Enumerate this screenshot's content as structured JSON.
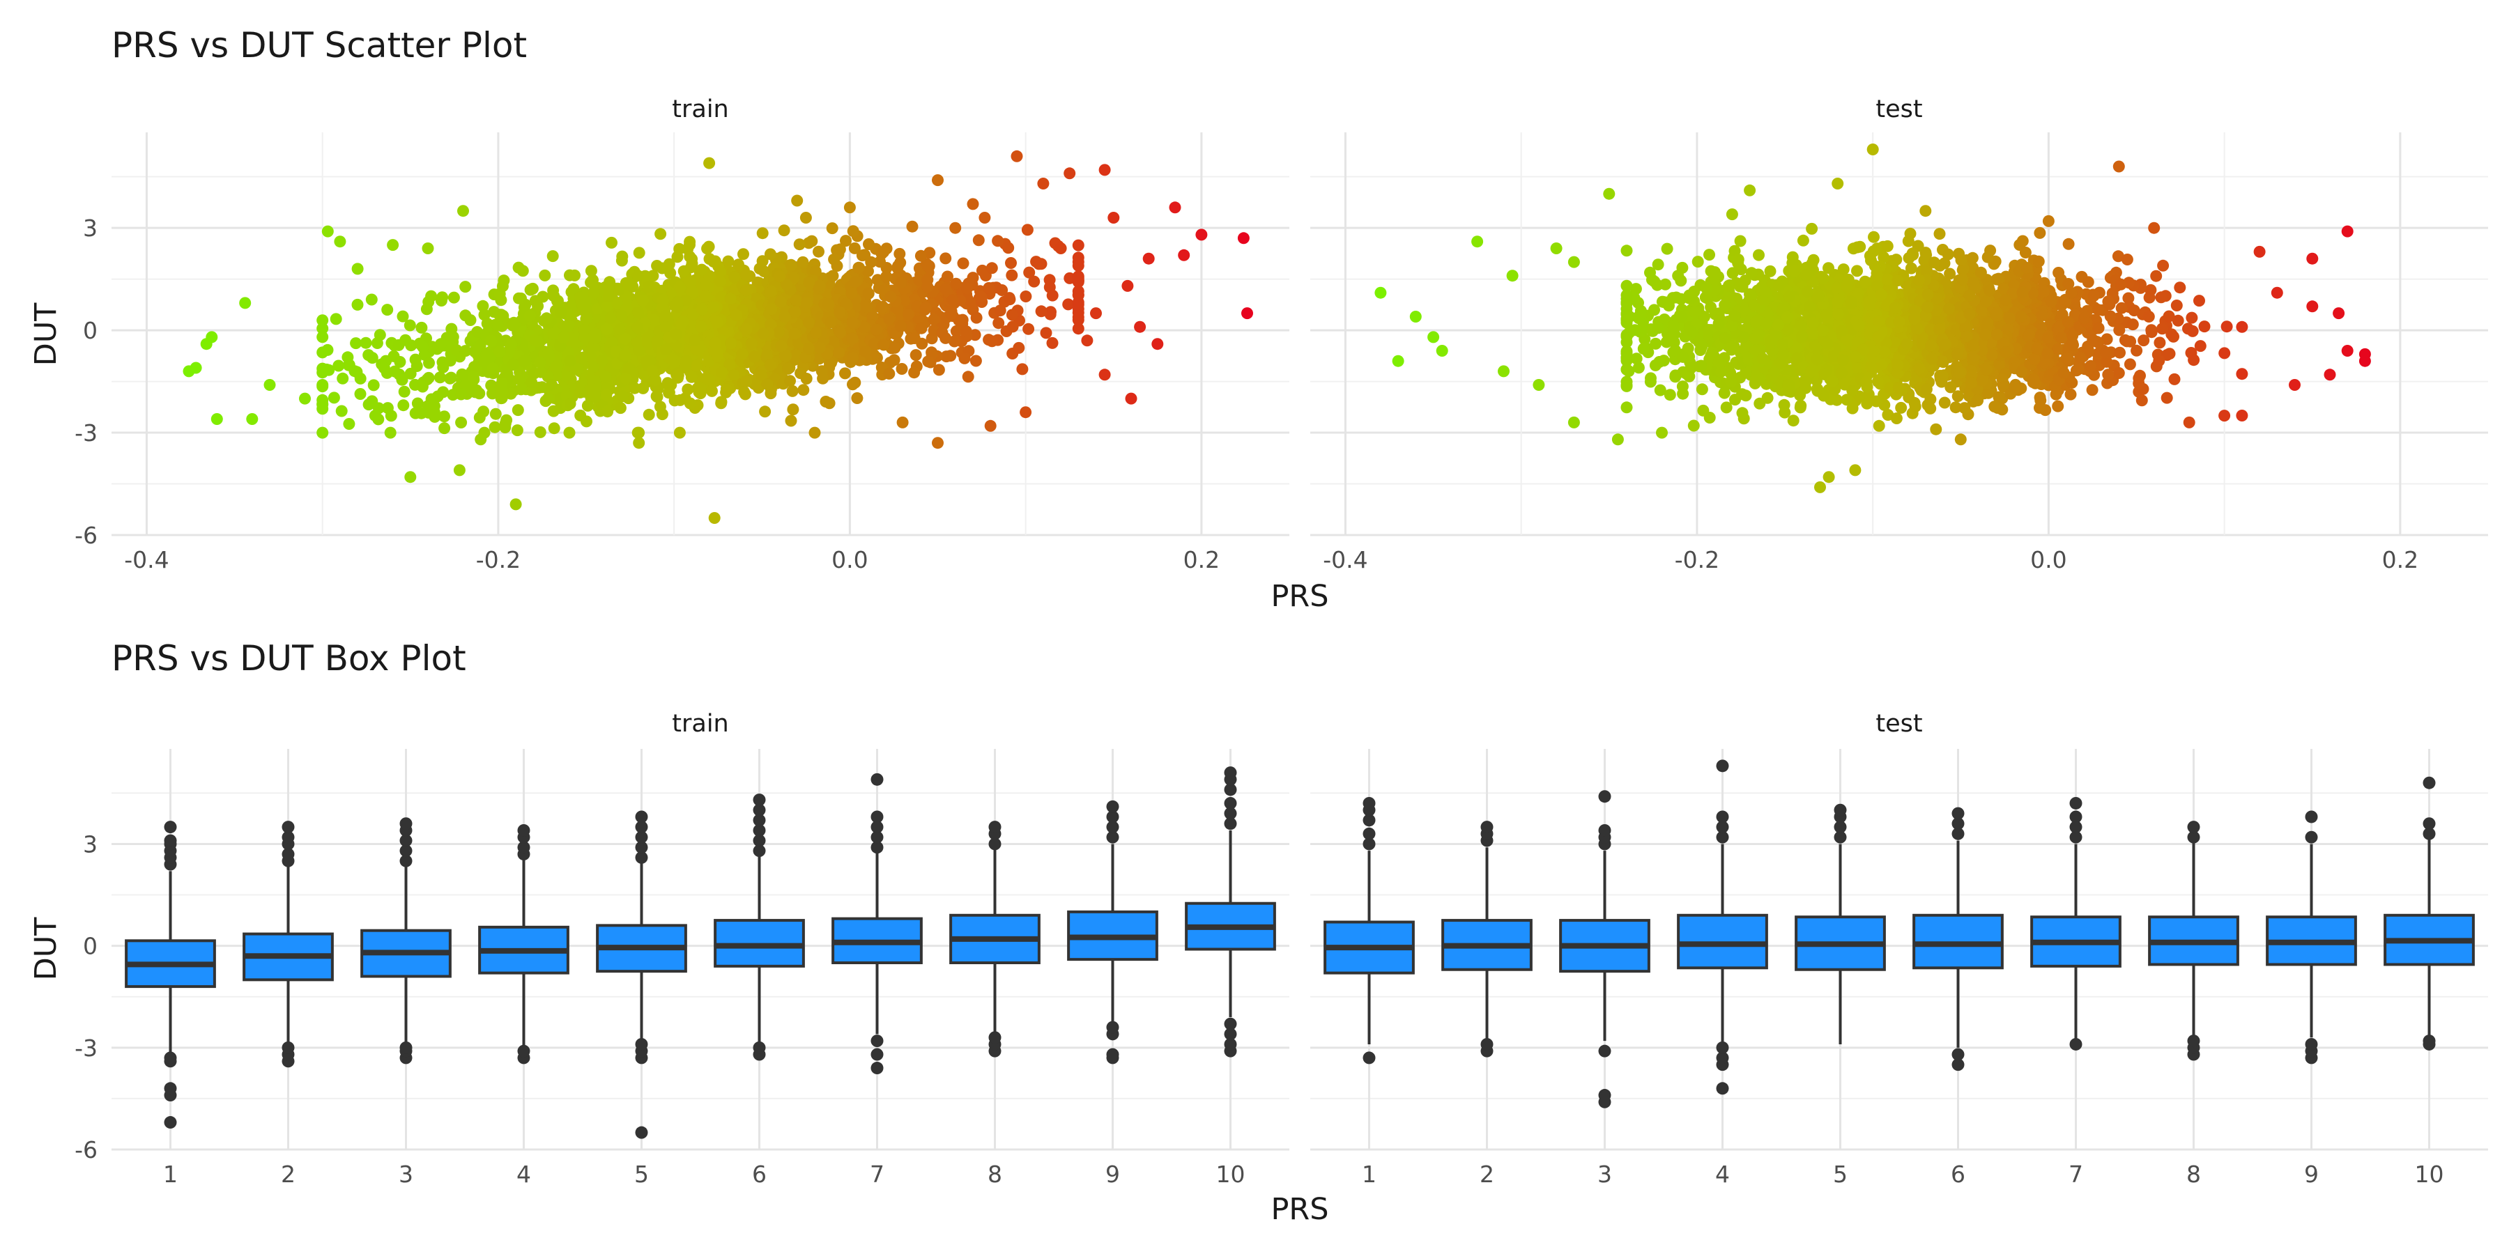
{
  "chart_data": [
    {
      "type": "scatter",
      "title": "PRS vs DUT Scatter Plot",
      "xlabel": "PRS",
      "ylabel": "DUT",
      "facets": [
        "train",
        "test"
      ],
      "xlim": [
        -0.42,
        0.25
      ],
      "ylim": [
        -6.0,
        5.8
      ],
      "x_ticks": [
        -0.4,
        -0.2,
        0.0,
        0.2
      ],
      "x_tick_labels": [
        "-0.4",
        "-0.2",
        "0.0",
        "0.2"
      ],
      "y_ticks": [
        -6,
        -3,
        0,
        3
      ],
      "y_tick_labels": [
        "-6",
        "-3",
        "0",
        "3"
      ],
      "grid": true,
      "color_scale": {
        "low": "#7cf000",
        "mid": "#b8b800",
        "high": "#e8001e",
        "mapped_to": "PRS"
      },
      "series": [
        {
          "facet": "train",
          "x_range": [
            -0.38,
            0.23
          ],
          "cloud_center": [
            -0.08,
            0.0
          ],
          "cloud_x_extent": [
            -0.3,
            0.13
          ],
          "cloud_y_extent": [
            -3.0,
            3.3
          ],
          "points": [
            [
              -0.376,
              -1.2
            ],
            [
              -0.372,
              -1.1
            ],
            [
              -0.366,
              -0.4
            ],
            [
              -0.363,
              -0.2
            ],
            [
              -0.36,
              -2.6
            ],
            [
              -0.344,
              0.8
            ],
            [
              -0.34,
              -2.6
            ],
            [
              -0.33,
              -1.6
            ],
            [
              -0.31,
              -2.0
            ],
            [
              -0.3,
              -2.3
            ],
            [
              -0.297,
              2.9
            ],
            [
              -0.29,
              2.6
            ],
            [
              -0.272,
              0.9
            ],
            [
              -0.26,
              2.5
            ],
            [
              -0.25,
              -4.3
            ],
            [
              -0.24,
              2.4
            ],
            [
              -0.22,
              3.5
            ],
            [
              -0.222,
              -4.1
            ],
            [
              -0.19,
              -5.1
            ],
            [
              -0.08,
              4.9
            ],
            [
              -0.077,
              -5.5
            ],
            [
              -0.03,
              3.8
            ],
            [
              0.0,
              3.6
            ],
            [
              0.05,
              4.4
            ],
            [
              0.07,
              3.7
            ],
            [
              0.095,
              5.1
            ],
            [
              0.11,
              4.3
            ],
            [
              0.125,
              4.6
            ],
            [
              0.145,
              4.7
            ],
            [
              0.15,
              3.3
            ],
            [
              0.158,
              1.3
            ],
            [
              0.16,
              -2.0
            ],
            [
              0.17,
              2.1
            ],
            [
              0.185,
              3.6
            ],
            [
              0.19,
              2.2
            ],
            [
              0.2,
              2.8
            ],
            [
              0.224,
              2.7
            ],
            [
              0.226,
              0.5
            ],
            [
              0.1,
              -2.4
            ],
            [
              0.12,
              2.4
            ],
            [
              0.135,
              -0.3
            ],
            [
              0.14,
              0.5
            ],
            [
              0.145,
              -1.3
            ],
            [
              0.165,
              0.1
            ],
            [
              0.175,
              -0.4
            ],
            [
              0.05,
              -3.3
            ],
            [
              -0.02,
              -3.0
            ],
            [
              -0.12,
              -3.3
            ],
            [
              -0.21,
              -3.2
            ],
            [
              0.08,
              -2.8
            ],
            [
              -0.27,
              -2.5
            ],
            [
              -0.28,
              1.8
            ],
            [
              0.03,
              -2.7
            ],
            [
              0.06,
              3.0
            ]
          ]
        },
        {
          "facet": "test",
          "x_range": [
            -0.38,
            0.19
          ],
          "cloud_center": [
            -0.09,
            0.0
          ],
          "cloud_x_extent": [
            -0.24,
            0.11
          ],
          "cloud_y_extent": [
            -2.9,
            3.0
          ],
          "points": [
            [
              -0.38,
              1.1
            ],
            [
              -0.37,
              -0.9
            ],
            [
              -0.36,
              0.4
            ],
            [
              -0.35,
              -0.2
            ],
            [
              -0.345,
              -0.6
            ],
            [
              -0.325,
              2.6
            ],
            [
              -0.31,
              -1.2
            ],
            [
              -0.305,
              1.6
            ],
            [
              -0.29,
              -1.6
            ],
            [
              -0.28,
              2.4
            ],
            [
              -0.27,
              -2.7
            ],
            [
              -0.25,
              4.0
            ],
            [
              -0.245,
              -3.2
            ],
            [
              -0.17,
              4.1
            ],
            [
              -0.13,
              -4.6
            ],
            [
              -0.125,
              -4.3
            ],
            [
              -0.12,
              4.3
            ],
            [
              -0.11,
              -4.1
            ],
            [
              -0.1,
              5.3
            ],
            [
              -0.07,
              3.5
            ],
            [
              0.04,
              4.8
            ],
            [
              0.06,
              3.0
            ],
            [
              0.1,
              -2.5
            ],
            [
              0.12,
              2.3
            ],
            [
              0.13,
              1.1
            ],
            [
              0.14,
              -1.6
            ],
            [
              0.15,
              2.1
            ],
            [
              0.15,
              0.7
            ],
            [
              0.16,
              -1.3
            ],
            [
              0.165,
              0.5
            ],
            [
              0.17,
              2.9
            ],
            [
              0.17,
              -0.6
            ],
            [
              0.18,
              -0.9
            ],
            [
              0.18,
              -0.7
            ],
            [
              -0.22,
              -3.0
            ],
            [
              -0.05,
              -3.2
            ],
            [
              -0.18,
              3.4
            ],
            [
              0.0,
              3.2
            ],
            [
              0.08,
              -2.7
            ],
            [
              -0.27,
              2.0
            ]
          ]
        }
      ]
    },
    {
      "type": "box",
      "title": "PRS vs DUT Box Plot",
      "xlabel": "PRS",
      "ylabel": "DUT",
      "facets": [
        "train",
        "test"
      ],
      "categories": [
        "1",
        "2",
        "3",
        "4",
        "5",
        "6",
        "7",
        "8",
        "9",
        "10"
      ],
      "ylim": [
        -6.0,
        5.8
      ],
      "y_ticks": [
        -6,
        -3,
        0,
        3
      ],
      "y_tick_labels": [
        "-6",
        "-3",
        "0",
        "3"
      ],
      "grid": true,
      "box_fill": "#1e90ff",
      "series": [
        {
          "facet": "train",
          "boxes": [
            {
              "q1": -1.2,
              "median": -0.55,
              "q3": 0.15,
              "whisker_low": -3.2,
              "whisker_high": 2.2,
              "outliers": [
                -5.2,
                -4.4,
                -4.2,
                -3.4,
                -3.3,
                2.4,
                2.6,
                2.8,
                3.0,
                3.1,
                3.5
              ]
            },
            {
              "q1": -1.0,
              "median": -0.3,
              "q3": 0.35,
              "whisker_low": -3.0,
              "whisker_high": 2.35,
              "outliers": [
                -3.4,
                -3.2,
                -3.0,
                2.5,
                2.7,
                3.0,
                3.2,
                3.5
              ]
            },
            {
              "q1": -0.9,
              "median": -0.2,
              "q3": 0.45,
              "whisker_low": -2.9,
              "whisker_high": 2.4,
              "outliers": [
                -3.3,
                -3.1,
                -3.0,
                2.5,
                2.8,
                3.1,
                3.4,
                3.6
              ]
            },
            {
              "q1": -0.8,
              "median": -0.15,
              "q3": 0.55,
              "whisker_low": -2.95,
              "whisker_high": 2.55,
              "outliers": [
                -3.3,
                -3.1,
                2.7,
                2.9,
                3.2,
                3.4
              ]
            },
            {
              "q1": -0.75,
              "median": -0.05,
              "q3": 0.6,
              "whisker_low": -2.8,
              "whisker_high": 2.5,
              "outliers": [
                -5.5,
                -3.3,
                -3.1,
                -2.9,
                2.6,
                2.9,
                3.2,
                3.5,
                3.8
              ]
            },
            {
              "q1": -0.6,
              "median": 0.0,
              "q3": 0.75,
              "whisker_low": -2.9,
              "whisker_high": 2.7,
              "outliers": [
                -3.2,
                -3.0,
                2.8,
                3.1,
                3.4,
                3.7,
                4.0,
                4.3
              ]
            },
            {
              "q1": -0.5,
              "median": 0.1,
              "q3": 0.8,
              "whisker_low": -2.6,
              "whisker_high": 2.8,
              "outliers": [
                -3.6,
                -3.2,
                -2.8,
                2.9,
                3.2,
                3.5,
                3.8,
                4.9
              ]
            },
            {
              "q1": -0.5,
              "median": 0.2,
              "q3": 0.9,
              "whisker_low": -2.6,
              "whisker_high": 2.9,
              "outliers": [
                -3.1,
                -2.9,
                -2.7,
                3.0,
                3.3,
                3.5
              ]
            },
            {
              "q1": -0.4,
              "median": 0.25,
              "q3": 1.0,
              "whisker_low": -2.4,
              "whisker_high": 3.0,
              "outliers": [
                -3.3,
                -3.2,
                -2.6,
                -2.4,
                3.2,
                3.5,
                3.8,
                4.1
              ]
            },
            {
              "q1": -0.1,
              "median": 0.55,
              "q3": 1.25,
              "whisker_low": -2.1,
              "whisker_high": 3.4,
              "outliers": [
                -3.1,
                -2.9,
                -2.6,
                -2.3,
                3.6,
                3.9,
                4.2,
                4.6,
                4.9,
                5.1
              ]
            }
          ]
        },
        {
          "facet": "test",
          "boxes": [
            {
              "q1": -0.8,
              "median": -0.05,
              "q3": 0.7,
              "whisker_low": -2.9,
              "whisker_high": 2.8,
              "outliers": [
                -3.3,
                3.0,
                3.3,
                3.7,
                4.0,
                4.2
              ]
            },
            {
              "q1": -0.7,
              "median": 0.0,
              "q3": 0.75,
              "whisker_low": -2.8,
              "whisker_high": 2.9,
              "outliers": [
                -3.1,
                -2.9,
                3.1,
                3.3,
                3.5
              ]
            },
            {
              "q1": -0.75,
              "median": 0.0,
              "q3": 0.75,
              "whisker_low": -2.8,
              "whisker_high": 2.8,
              "outliers": [
                -4.6,
                -4.4,
                -3.1,
                3.0,
                3.2,
                3.4,
                4.4
              ]
            },
            {
              "q1": -0.65,
              "median": 0.05,
              "q3": 0.9,
              "whisker_low": -2.9,
              "whisker_high": 3.0,
              "outliers": [
                -4.2,
                -3.5,
                -3.3,
                -3.0,
                3.2,
                3.5,
                3.8,
                5.3
              ]
            },
            {
              "q1": -0.7,
              "median": 0.05,
              "q3": 0.85,
              "whisker_low": -2.9,
              "whisker_high": 3.0,
              "outliers": [
                3.2,
                3.5,
                3.8,
                4.0
              ]
            },
            {
              "q1": -0.65,
              "median": 0.05,
              "q3": 0.9,
              "whisker_low": -3.0,
              "whisker_high": 3.1,
              "outliers": [
                -3.5,
                -3.2,
                3.3,
                3.6,
                3.9
              ]
            },
            {
              "q1": -0.6,
              "median": 0.1,
              "q3": 0.85,
              "whisker_low": -2.8,
              "whisker_high": 3.0,
              "outliers": [
                -2.9,
                3.2,
                3.5,
                3.8,
                4.2
              ]
            },
            {
              "q1": -0.55,
              "median": 0.1,
              "q3": 0.85,
              "whisker_low": -2.8,
              "whisker_high": 3.1,
              "outliers": [
                -3.2,
                -3.0,
                -2.8,
                3.2,
                3.5
              ]
            },
            {
              "q1": -0.55,
              "median": 0.1,
              "q3": 0.85,
              "whisker_low": -2.7,
              "whisker_high": 3.0,
              "outliers": [
                -3.3,
                -3.1,
                -2.9,
                3.2,
                3.8
              ]
            },
            {
              "q1": -0.55,
              "median": 0.15,
              "q3": 0.9,
              "whisker_low": -2.7,
              "whisker_high": 3.2,
              "outliers": [
                -2.9,
                -2.8,
                3.3,
                3.6,
                4.8
              ]
            }
          ]
        }
      ]
    }
  ]
}
